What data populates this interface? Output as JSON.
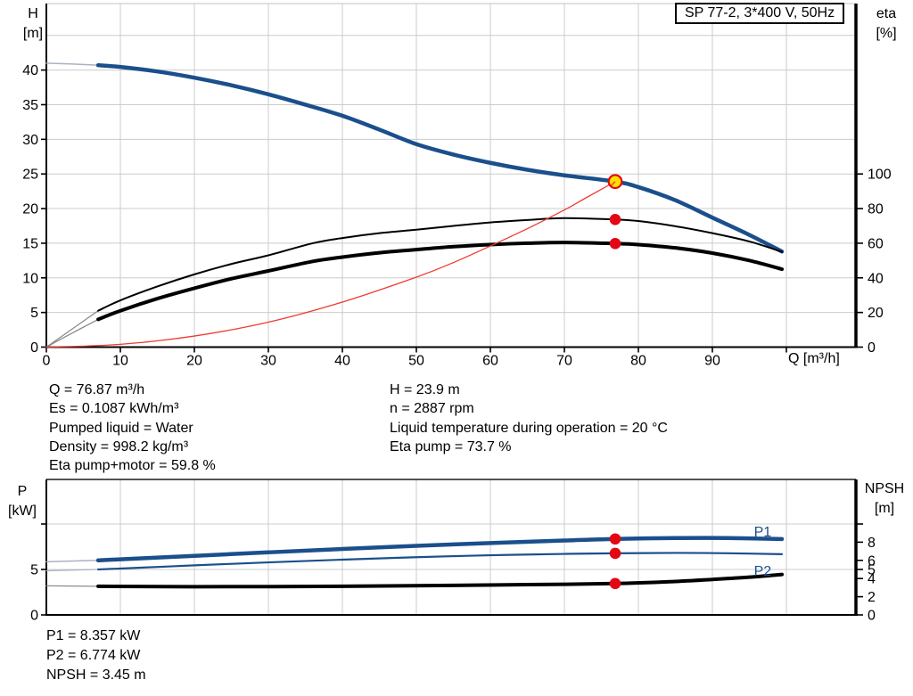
{
  "model_box_label": "SP 77-2, 3*400 V, 50Hz",
  "axis_captions": {
    "h": [
      "H",
      "[m]"
    ],
    "eta": [
      "eta",
      "[%]"
    ],
    "p": [
      "P",
      "[kW]"
    ],
    "npsh": [
      "NPSH",
      "[m]"
    ]
  },
  "stats_mid": {
    "left": [
      "Q = 76.87 m³/h",
      "Es = 0.1087 kWh/m³",
      "Pumped liquid = Water",
      "Density = 998.2 kg/m³",
      "Eta pump+motor = 59.8 %"
    ],
    "right": [
      "H = 23.9 m",
      "n = 2887 rpm",
      "Liquid temperature during operation = 20 °C",
      "Eta pump = 73.7 %"
    ]
  },
  "stats_bottom": [
    "P1 = 8.357 kW",
    "P2 = 6.774 kW",
    "NPSH = 3.45 m"
  ],
  "colors": {
    "curve_blue": "#1b4f8c",
    "curve_black": "#000000",
    "red_line": "#ef3b33",
    "red_dot": "#e30613",
    "yellow": "#ffdf00",
    "grid": "#cccccc",
    "lead_blue": "#a9b2c1",
    "lead_gray": "#8c8c8c"
  },
  "chart_data": [
    {
      "type": "line",
      "name": "hq-efficiency-chart",
      "title": "SP 77-2, 3*400 V, 50Hz",
      "x": {
        "label": "Q [m³/h]",
        "min": 0,
        "max": 109.4,
        "grid": [
          10,
          20,
          30,
          40,
          50,
          60,
          70,
          80,
          90,
          100
        ],
        "ticks": [
          {
            "v": 0,
            "t": "0"
          },
          {
            "v": 10,
            "t": "10"
          },
          {
            "v": 20,
            "t": "20"
          },
          {
            "v": 30,
            "t": "30"
          },
          {
            "v": 40,
            "t": "40"
          },
          {
            "v": 50,
            "t": "50"
          },
          {
            "v": 60,
            "t": "60"
          },
          {
            "v": 70,
            "t": "70"
          },
          {
            "v": 80,
            "t": "80"
          },
          {
            "v": 90,
            "t": "90"
          },
          {
            "v": 100,
            "t": ""
          }
        ]
      },
      "y_left": {
        "label": "H [m]",
        "min": 0,
        "max": 49.6,
        "grid": [
          5,
          10,
          15,
          20,
          25,
          30,
          35,
          40,
          45
        ],
        "ticks": [
          {
            "v": 0,
            "t": "0"
          },
          {
            "v": 5,
            "t": "5"
          },
          {
            "v": 10,
            "t": "10"
          },
          {
            "v": 15,
            "t": "15"
          },
          {
            "v": 20,
            "t": "20"
          },
          {
            "v": 25,
            "t": "25"
          },
          {
            "v": 30,
            "t": "30"
          },
          {
            "v": 35,
            "t": "35"
          },
          {
            "v": 40,
            "t": "40"
          }
        ]
      },
      "y_right": {
        "label": "eta [%]",
        "min": 0,
        "max": 198.4,
        "ticks": [
          {
            "v": 0,
            "t": "0"
          },
          {
            "v": 20,
            "t": "20"
          },
          {
            "v": 40,
            "t": "40"
          },
          {
            "v": 60,
            "t": "60"
          },
          {
            "v": 80,
            "t": "80"
          },
          {
            "v": 100,
            "t": "100"
          }
        ]
      },
      "series": [
        {
          "name": "head-curve",
          "axis": "left",
          "color": "#1b4f8c",
          "width": 4.5,
          "thin_until": 7,
          "thin_color": "#a9b2c1",
          "thin_width": 1.5,
          "points": [
            [
              0,
              41.0
            ],
            [
              4,
              40.85
            ],
            [
              7,
              40.7
            ],
            [
              10,
              40.45
            ],
            [
              15,
              39.8
            ],
            [
              20,
              38.9
            ],
            [
              25,
              37.8
            ],
            [
              30,
              36.5
            ],
            [
              35,
              35.0
            ],
            [
              40,
              33.4
            ],
            [
              45,
              31.4
            ],
            [
              50,
              29.3
            ],
            [
              55,
              27.8
            ],
            [
              60,
              26.6
            ],
            [
              65,
              25.6
            ],
            [
              70,
              24.8
            ],
            [
              76.87,
              23.9
            ],
            [
              80,
              23.1
            ],
            [
              85,
              21.2
            ],
            [
              90,
              18.7
            ],
            [
              95,
              16.2
            ],
            [
              99.4,
              13.8
            ]
          ]
        },
        {
          "name": "eta-pump-curve",
          "axis": "right",
          "color": "#000000",
          "width": 2,
          "thin_until": 7,
          "thin_color": "#8c8c8c",
          "thin_width": 1.3,
          "points": [
            [
              0,
              0
            ],
            [
              3,
              9
            ],
            [
              7,
              21
            ],
            [
              10,
              27
            ],
            [
              15,
              35
            ],
            [
              20,
              42
            ],
            [
              25,
              48
            ],
            [
              30,
              53
            ],
            [
              36,
              60
            ],
            [
              40,
              63
            ],
            [
              45,
              65.8
            ],
            [
              50,
              67.8
            ],
            [
              55,
              70
            ],
            [
              60,
              72
            ],
            [
              65,
              73.4
            ],
            [
              70,
              74.5
            ],
            [
              76.87,
              73.7
            ],
            [
              80,
              72.8
            ],
            [
              85,
              69.8
            ],
            [
              90,
              65.8
            ],
            [
              95,
              61
            ],
            [
              99.4,
              55
            ]
          ]
        },
        {
          "name": "eta-pump-motor-curve",
          "axis": "right",
          "color": "#000000",
          "width": 4,
          "thin_until": 7,
          "thin_color": "#8c8c8c",
          "thin_width": 1.3,
          "points": [
            [
              0,
              0
            ],
            [
              3,
              7
            ],
            [
              7,
              16
            ],
            [
              10,
              21
            ],
            [
              15,
              28
            ],
            [
              20,
              34
            ],
            [
              25,
              39.5
            ],
            [
              30,
              44
            ],
            [
              36,
              49.5
            ],
            [
              40,
              52
            ],
            [
              45,
              54.5
            ],
            [
              50,
              56.3
            ],
            [
              55,
              58
            ],
            [
              60,
              59.2
            ],
            [
              65,
              60
            ],
            [
              70,
              60.4
            ],
            [
              76.87,
              59.8
            ],
            [
              80,
              59.2
            ],
            [
              85,
              57.3
            ],
            [
              90,
              54.3
            ],
            [
              95,
              50
            ],
            [
              99.4,
              45
            ]
          ]
        },
        {
          "name": "system-curve",
          "axis": "left",
          "color": "#ef3b33",
          "width": 1.3,
          "points": [
            [
              0,
              0
            ],
            [
              10,
              0.4
            ],
            [
              20,
              1.6
            ],
            [
              30,
              3.6
            ],
            [
              40,
              6.5
            ],
            [
              50,
              10.1
            ],
            [
              55,
              12.2
            ],
            [
              60,
              14.6
            ],
            [
              65,
              17.1
            ],
            [
              70,
              19.8
            ],
            [
              73,
              21.6
            ],
            [
              76.87,
              23.9
            ]
          ]
        }
      ],
      "markers": [
        {
          "type": "op",
          "name": "operating-point-marker",
          "x": 76.87,
          "y": 23.9,
          "axis": "left"
        },
        {
          "type": "dot",
          "name": "eta-pump-duty-dot",
          "x": 76.87,
          "y": 73.7,
          "axis": "right"
        },
        {
          "type": "dot",
          "name": "eta-pump-motor-duty-dot",
          "x": 76.87,
          "y": 59.8,
          "axis": "right"
        }
      ],
      "series_labels": []
    },
    {
      "type": "line",
      "name": "power-npsh-chart",
      "x": {
        "label": "",
        "min": 0,
        "max": 109.4,
        "grid": [
          10,
          20,
          30,
          40,
          50,
          60,
          70,
          80,
          90,
          100
        ],
        "ticks": []
      },
      "y_left": {
        "label": "P [kW]",
        "min": 0,
        "max": 14.9,
        "grid": [
          5,
          10
        ],
        "ticks": [
          {
            "v": 0,
            "t": "0"
          },
          {
            "v": 5,
            "t": "5"
          },
          {
            "v": 10,
            "t": ""
          }
        ]
      },
      "y_right": {
        "label": "NPSH [m]",
        "min": 0,
        "max": 14.9,
        "ticks": [
          {
            "v": 0,
            "t": "0"
          },
          {
            "v": 2,
            "t": "2"
          },
          {
            "v": 4,
            "t": "4"
          },
          {
            "v": 5,
            "t": "5"
          },
          {
            "v": 6,
            "t": "6"
          },
          {
            "v": 8,
            "t": "8"
          },
          {
            "v": 10,
            "t": ""
          }
        ]
      },
      "series": [
        {
          "name": "p1-curve",
          "axis": "left",
          "color": "#1b4f8c",
          "width": 4.5,
          "thin_until": 7,
          "thin_color": "#a9b2c1",
          "thin_width": 1.5,
          "points": [
            [
              0,
              5.85
            ],
            [
              7,
              6.0
            ],
            [
              10,
              6.12
            ],
            [
              20,
              6.5
            ],
            [
              30,
              6.88
            ],
            [
              40,
              7.25
            ],
            [
              50,
              7.6
            ],
            [
              60,
              7.9
            ],
            [
              70,
              8.18
            ],
            [
              76.87,
              8.357
            ],
            [
              85,
              8.45
            ],
            [
              92,
              8.45
            ],
            [
              99.4,
              8.35
            ]
          ]
        },
        {
          "name": "p2-curve",
          "axis": "left",
          "color": "#1b4f8c",
          "width": 2.2,
          "thin_until": 7,
          "thin_color": "#a9b2c1",
          "thin_width": 1.3,
          "points": [
            [
              0,
              4.85
            ],
            [
              7,
              5.0
            ],
            [
              10,
              5.1
            ],
            [
              20,
              5.45
            ],
            [
              30,
              5.78
            ],
            [
              40,
              6.08
            ],
            [
              50,
              6.35
            ],
            [
              60,
              6.56
            ],
            [
              70,
              6.71
            ],
            [
              76.87,
              6.774
            ],
            [
              85,
              6.82
            ],
            [
              92,
              6.78
            ],
            [
              99.4,
              6.68
            ]
          ]
        },
        {
          "name": "npsh-curve",
          "axis": "right",
          "color": "#000000",
          "width": 4,
          "thin_until": 7,
          "thin_color": "#8c8c8c",
          "thin_width": 1.3,
          "points": [
            [
              0,
              3.2
            ],
            [
              7,
              3.15
            ],
            [
              20,
              3.1
            ],
            [
              40,
              3.15
            ],
            [
              55,
              3.25
            ],
            [
              65,
              3.33
            ],
            [
              76.87,
              3.45
            ],
            [
              85,
              3.68
            ],
            [
              90,
              3.9
            ],
            [
              95,
              4.15
            ],
            [
              99.4,
              4.45
            ]
          ]
        }
      ],
      "markers": [
        {
          "type": "dot",
          "name": "p1-duty-dot",
          "x": 76.87,
          "y": 8.357,
          "axis": "left"
        },
        {
          "type": "dot",
          "name": "p2-duty-dot",
          "x": 76.87,
          "y": 6.774,
          "axis": "left"
        },
        {
          "type": "dot",
          "name": "npsh-duty-dot",
          "x": 76.87,
          "y": 3.45,
          "axis": "right"
        }
      ],
      "series_labels": [
        {
          "text": "P1",
          "x": 96.8,
          "y": 9.1,
          "axis": "left",
          "color": "#1b4f8c"
        },
        {
          "text": "P2",
          "x": 96.8,
          "y": 4.78,
          "axis": "left",
          "color": "#1b4f8c"
        }
      ]
    }
  ]
}
